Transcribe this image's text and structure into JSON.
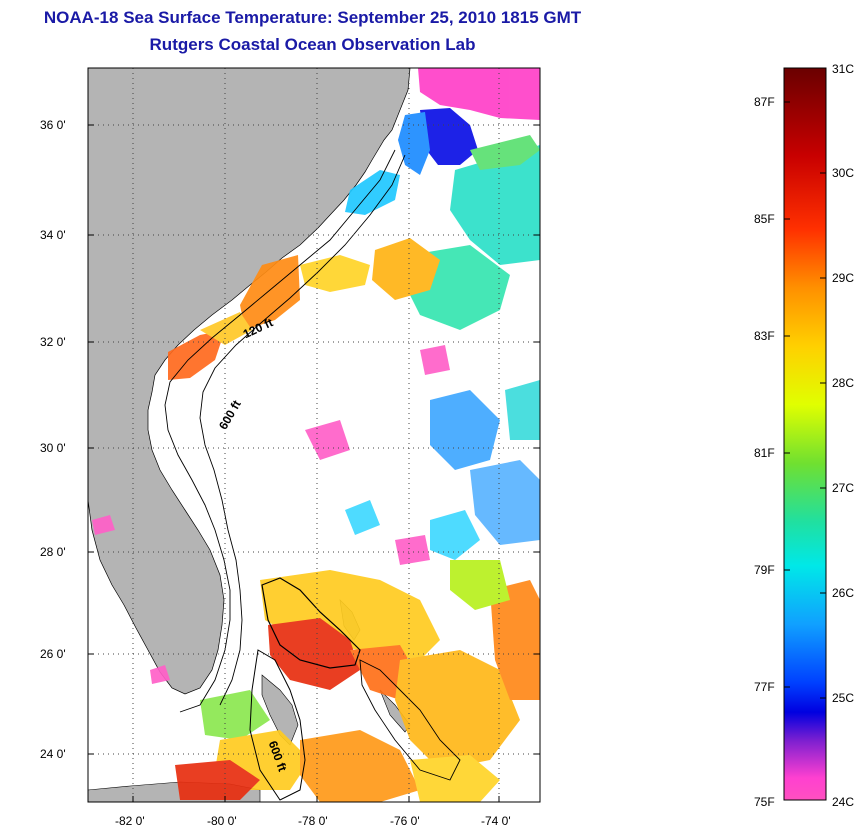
{
  "title": "NOAA-18 Sea Surface Temperature:  September 25, 2010 1815 GMT",
  "subtitle": "Rutgers Coastal Ocean Observation Lab",
  "map": {
    "lat_labels": [
      "36 0'",
      "34 0'",
      "32 0'",
      "30 0'",
      "28 0'",
      "26 0'",
      "24 0'"
    ],
    "lon_labels": [
      "-82 0'",
      "-80 0'",
      "-78 0'",
      "-76 0'",
      "-74 0'"
    ],
    "contour_labels": [
      "120 ft",
      "600 ft",
      "600 ft"
    ]
  },
  "colorbar": {
    "celsius_labels": [
      "31C",
      "30C",
      "29C",
      "28C",
      "27C",
      "26C",
      "25C",
      "24C"
    ],
    "fahrenheit_labels": [
      "87F",
      "85F",
      "83F",
      "81F",
      "79F",
      "77F",
      "75F"
    ],
    "colors": [
      "#6a0000",
      "#c80000",
      "#ff3000",
      "#ff9000",
      "#ffd000",
      "#e0ff00",
      "#70e030",
      "#20e0a0",
      "#00e8e8",
      "#10a0ff",
      "#0040ff",
      "#0000e0",
      "#8020d0",
      "#ff40d0",
      "#ff50c0"
    ]
  }
}
